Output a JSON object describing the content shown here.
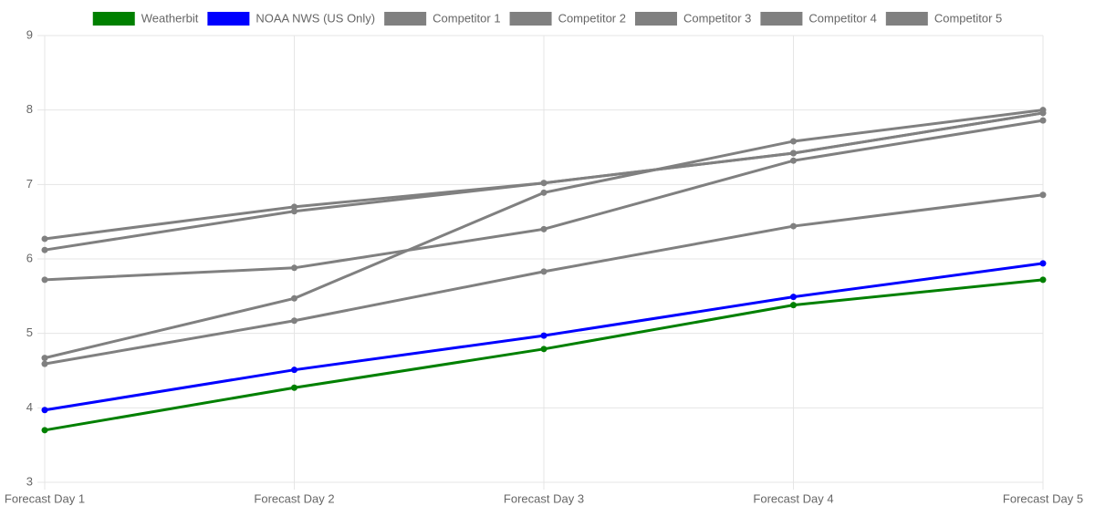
{
  "chart_data": {
    "type": "line",
    "categories": [
      "Forecast Day 1",
      "Forecast Day 2",
      "Forecast Day 3",
      "Forecast Day 4",
      "Forecast Day 5"
    ],
    "series": [
      {
        "name": "Weatherbit",
        "color": "#008000",
        "values": [
          3.7,
          4.27,
          4.79,
          5.38,
          5.72
        ]
      },
      {
        "name": "NOAA NWS (US Only)",
        "color": "#0000ff",
        "values": [
          3.97,
          4.51,
          4.97,
          5.49,
          5.94
        ]
      },
      {
        "name": "Competitor 1",
        "color": "#808080",
        "values": [
          6.27,
          6.7,
          7.02,
          7.42,
          7.96
        ]
      },
      {
        "name": "Competitor 2",
        "color": "#808080",
        "values": [
          4.67,
          5.47,
          6.89,
          7.58,
          8.0
        ]
      },
      {
        "name": "Competitor 3",
        "color": "#808080",
        "values": [
          5.72,
          5.88,
          6.4,
          7.32,
          7.86
        ]
      },
      {
        "name": "Competitor 4",
        "color": "#808080",
        "values": [
          6.12,
          6.64,
          7.02,
          7.42,
          7.96
        ]
      },
      {
        "name": "Competitor 5",
        "color": "#808080",
        "values": [
          4.59,
          5.17,
          5.83,
          6.44,
          6.86
        ]
      }
    ],
    "ylim": [
      3,
      9
    ],
    "yticks": [
      3,
      4,
      5,
      6,
      7,
      8,
      9
    ],
    "grid": true,
    "legend": "top"
  }
}
